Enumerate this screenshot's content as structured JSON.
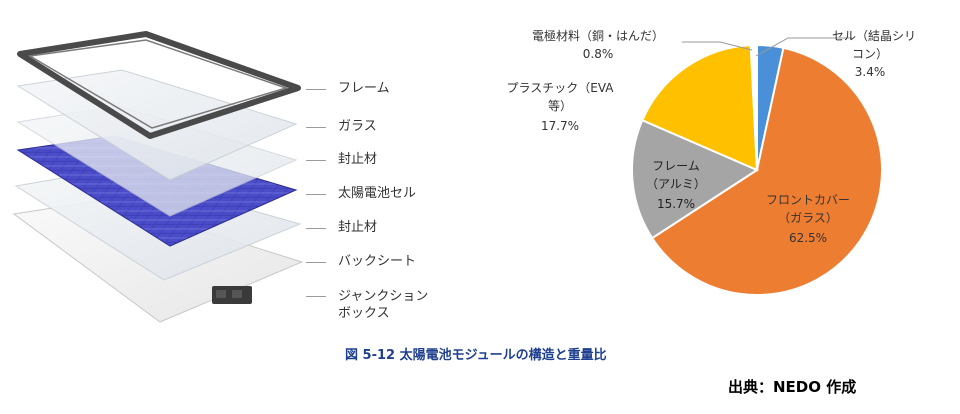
{
  "layers": [
    {
      "label": "フレーム"
    },
    {
      "label": "ガラス"
    },
    {
      "label": "封止材"
    },
    {
      "label": "太陽電池セル"
    },
    {
      "label": "封止材"
    },
    {
      "label": "バックシート"
    },
    {
      "label_lines": [
        "ジャンクション",
        "ボックス"
      ]
    }
  ],
  "chart_data": {
    "type": "pie",
    "title": "",
    "slices": [
      {
        "name_lines": [
          "セル（結晶シリ",
          "コン）"
        ],
        "value": 3.4,
        "value_label": "3.4%",
        "color": "#4a90d9"
      },
      {
        "name_lines": [
          "フロントカバー",
          "（ガラス）"
        ],
        "value": 62.5,
        "value_label": "62.5%",
        "color": "#ed7d31"
      },
      {
        "name_lines": [
          "フレーム",
          "（アルミ）"
        ],
        "value": 15.7,
        "value_label": "15.7%",
        "color": "#a5a5a5"
      },
      {
        "name_lines": [
          "プラスチック（EVA",
          "等）"
        ],
        "value": 17.7,
        "value_label": "17.7%",
        "color": "#ffc000"
      },
      {
        "name_lines": [
          "電極材料（銅・はんだ）"
        ],
        "value": 0.8,
        "value_label": "0.8%",
        "color": "#ffffff"
      }
    ]
  },
  "caption": "図 5-12  太陽電池モジュールの構造と重量比",
  "source": "出典：NEDO 作成"
}
